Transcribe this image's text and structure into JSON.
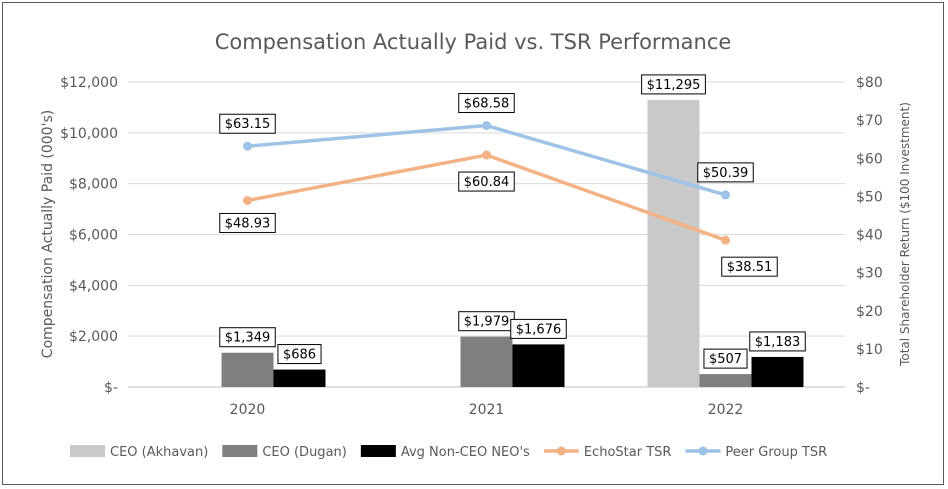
{
  "chart_data": {
    "type": "bar",
    "title": "Compensation Actually Paid vs. TSR Performance",
    "categories": [
      "2020",
      "2021",
      "2022"
    ],
    "ylabel": "Compensation Actually Paid (000's)",
    "ylim": [
      0,
      12000
    ],
    "yticks": [
      "$-",
      "$2,000",
      "$4,000",
      "$6,000",
      "$8,000",
      "$10,000",
      "$12,000"
    ],
    "y2label": "Total Shareholder Return ($100 Investment)",
    "y2lim": [
      0,
      80
    ],
    "y2ticks": [
      "$-",
      "$10",
      "$20",
      "$30",
      "$40",
      "$50",
      "$60",
      "$70",
      "$80"
    ],
    "bar_series": [
      {
        "name": "CEO (Akhavan)",
        "color": "#c9c9c9",
        "values": [
          null,
          null,
          11295
        ],
        "labels": [
          "",
          "",
          "$11,295"
        ]
      },
      {
        "name": "CEO (Dugan)",
        "color": "#7f7f7f",
        "values": [
          1349,
          1979,
          507
        ],
        "labels": [
          "$1,349",
          "$1,979",
          "$507"
        ]
      },
      {
        "name": "Avg Non-CEO NEO's",
        "color": "#000000",
        "values": [
          686,
          1676,
          1183
        ],
        "labels": [
          "$686",
          "$1,676",
          "$1,183"
        ]
      }
    ],
    "line_series": [
      {
        "name": "EchoStar TSR",
        "color": "#f4b183",
        "values": [
          48.93,
          60.84,
          38.51
        ],
        "labels": [
          "$48.93",
          "$60.84",
          "$38.51"
        ]
      },
      {
        "name": "Peer Group TSR",
        "color": "#9dc3e6",
        "values": [
          63.15,
          68.58,
          50.39
        ],
        "labels": [
          "$63.15",
          "$68.58",
          "$50.39"
        ]
      }
    ],
    "legend_position": "bottom"
  }
}
